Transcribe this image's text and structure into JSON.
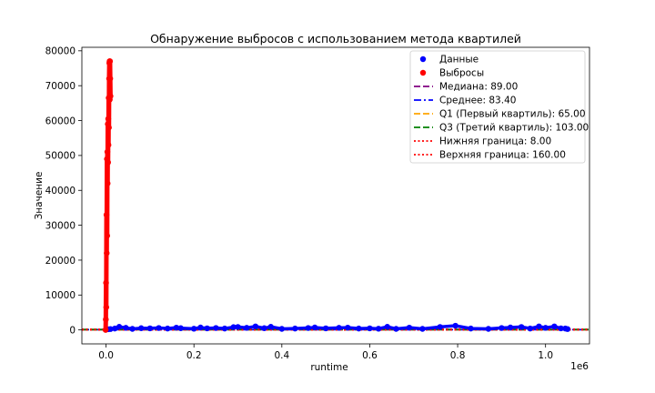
{
  "chart_data": {
    "type": "scatter",
    "title": "Обнаружение выбросов с использованием метода квартилей",
    "xlabel": "runtime",
    "ylabel": "Значение",
    "x_offset_label": "1e6",
    "xlim": [
      -55000,
      1100000
    ],
    "ylim": [
      -4000,
      81000
    ],
    "x_ticks": [
      {
        "value": 0,
        "label": "0.0"
      },
      {
        "value": 200000,
        "label": "0.2"
      },
      {
        "value": 400000,
        "label": "0.4"
      },
      {
        "value": 600000,
        "label": "0.6"
      },
      {
        "value": 800000,
        "label": "0.8"
      },
      {
        "value": 1000000,
        "label": "1.0"
      }
    ],
    "y_ticks": [
      {
        "value": 0,
        "label": "0"
      },
      {
        "value": 10000,
        "label": "10000"
      },
      {
        "value": 20000,
        "label": "20000"
      },
      {
        "value": 30000,
        "label": "30000"
      },
      {
        "value": 40000,
        "label": "40000"
      },
      {
        "value": 50000,
        "label": "50000"
      },
      {
        "value": 60000,
        "label": "60000"
      },
      {
        "value": 70000,
        "label": "70000"
      },
      {
        "value": 80000,
        "label": "80000"
      }
    ],
    "grid": false,
    "legend_position": "top-right",
    "series": [
      {
        "name": "Данные",
        "kind": "points",
        "color": "#0000ff",
        "x": [
          0,
          5000,
          10000,
          20000,
          30000,
          45000,
          60000,
          80000,
          100000,
          120000,
          140000,
          160000,
          170000,
          200000,
          215000,
          230000,
          250000,
          270000,
          290000,
          300000,
          320000,
          340000,
          360000,
          375000,
          400000,
          430000,
          460000,
          475000,
          500000,
          530000,
          550000,
          575000,
          600000,
          620000,
          640000,
          660000,
          690000,
          720000,
          760000,
          795000,
          830000,
          870000,
          900000,
          920000,
          945000,
          965000,
          985000,
          1000000,
          1020000,
          1035000,
          1045000,
          1050000
        ],
        "y": [
          150,
          200,
          250,
          400,
          900,
          600,
          300,
          500,
          450,
          550,
          400,
          650,
          500,
          350,
          700,
          450,
          550,
          400,
          800,
          850,
          600,
          1000,
          500,
          900,
          300,
          400,
          550,
          700,
          450,
          600,
          650,
          400,
          450,
          350,
          900,
          300,
          650,
          300,
          850,
          1200,
          400,
          300,
          550,
          700,
          850,
          400,
          1000,
          600,
          1000,
          450,
          400,
          250
        ]
      },
      {
        "name": "Выбросы",
        "kind": "points",
        "color": "#ff0000",
        "x": [
          -1000,
          -500,
          0,
          500,
          1000,
          1500,
          2000,
          2500,
          3000,
          3500,
          4000,
          4500,
          5000,
          5500,
          6000,
          6500,
          7000,
          7500,
          8000,
          8500,
          9000,
          9500,
          10000
        ],
        "y": [
          0,
          3000,
          13500,
          6500,
          33000,
          22000,
          49000,
          27000,
          51000,
          42000,
          59000,
          48000,
          60500,
          53000,
          66500,
          58000,
          72000,
          76500,
          77000,
          66000,
          77000,
          72000,
          67000
        ]
      },
      {
        "name": "Медиана: 89.00",
        "kind": "hline",
        "value": 89.0,
        "color": "#800080",
        "style": "dashed"
      },
      {
        "name": "Среднее: 83.40",
        "kind": "hline",
        "value": 83.4,
        "color": "#0000ff",
        "style": "dashdot"
      },
      {
        "name": "Q1 (Первый квартиль): 65.00",
        "kind": "hline",
        "value": 65.0,
        "color": "#ffa500",
        "style": "dashed"
      },
      {
        "name": "Q3 (Третий квартиль): 103.00",
        "kind": "hline",
        "value": 103.0,
        "color": "#008000",
        "style": "dashed"
      },
      {
        "name": "Нижняя граница: 8.00",
        "kind": "hline",
        "value": 8.0,
        "color": "#ff0000",
        "style": "dotted"
      },
      {
        "name": "Верхняя граница: 160.00",
        "kind": "hline",
        "value": 160.0,
        "color": "#ff0000",
        "style": "dotted"
      }
    ]
  }
}
